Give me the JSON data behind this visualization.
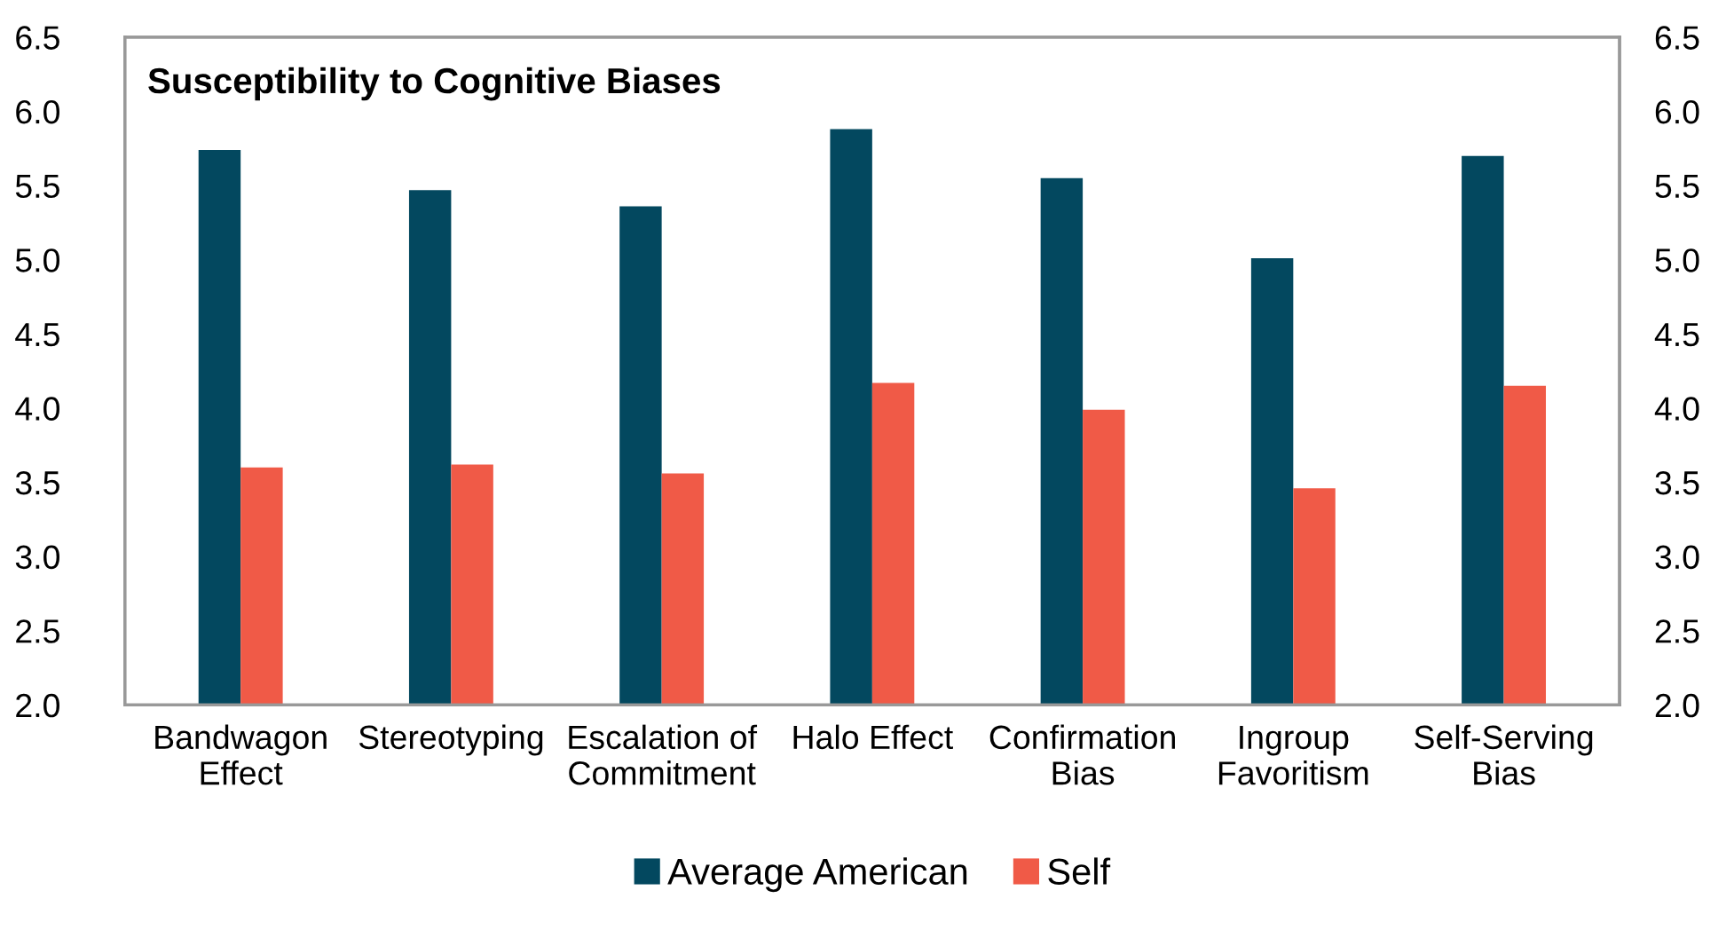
{
  "chart_data": {
    "type": "bar",
    "title": "Susceptibility to Cognitive Biases",
    "categories": [
      "Bandwagon\nEffect",
      "Stereotyping",
      "Escalation of\nCommitment",
      "Halo Effect",
      "Confirmation\nBias",
      "Ingroup\nFavoritism",
      "Self-Serving\nBias"
    ],
    "series": [
      {
        "name": "Average American",
        "color": "#03485f",
        "values": [
          5.74,
          5.47,
          5.36,
          5.88,
          5.55,
          5.01,
          5.7
        ]
      },
      {
        "name": "Self",
        "color": "#f05a47",
        "values": [
          3.6,
          3.62,
          3.56,
          4.17,
          3.99,
          3.46,
          4.15
        ]
      }
    ],
    "ylim": [
      2.0,
      6.5
    ],
    "yticks": [
      {
        "value": 2.0,
        "label": "2.0"
      },
      {
        "value": 2.5,
        "label": "2.5"
      },
      {
        "value": 3.0,
        "label": "3.0"
      },
      {
        "value": 3.5,
        "label": "3.5"
      },
      {
        "value": 4.0,
        "label": "4.0"
      },
      {
        "value": 4.5,
        "label": "4.5"
      },
      {
        "value": 5.0,
        "label": "5.0"
      },
      {
        "value": 5.5,
        "label": "5.5"
      },
      {
        "value": 6.0,
        "label": "6.0"
      },
      {
        "value": 6.5,
        "label": "6.5"
      }
    ],
    "y2lim": [
      2.0,
      6.5
    ],
    "y2ticks": [
      {
        "value": 2.0,
        "label": "2.0"
      },
      {
        "value": 2.5,
        "label": "2.5"
      },
      {
        "value": 3.0,
        "label": "3.0"
      },
      {
        "value": 3.5,
        "label": "3.5"
      },
      {
        "value": 4.0,
        "label": "4.0"
      },
      {
        "value": 4.5,
        "label": "4.5"
      },
      {
        "value": 5.0,
        "label": "5.0"
      },
      {
        "value": 5.5,
        "label": "5.5"
      },
      {
        "value": 6.0,
        "label": "6.0"
      },
      {
        "value": 6.5,
        "label": "6.5"
      }
    ],
    "grid": false,
    "legend": "bottom"
  }
}
